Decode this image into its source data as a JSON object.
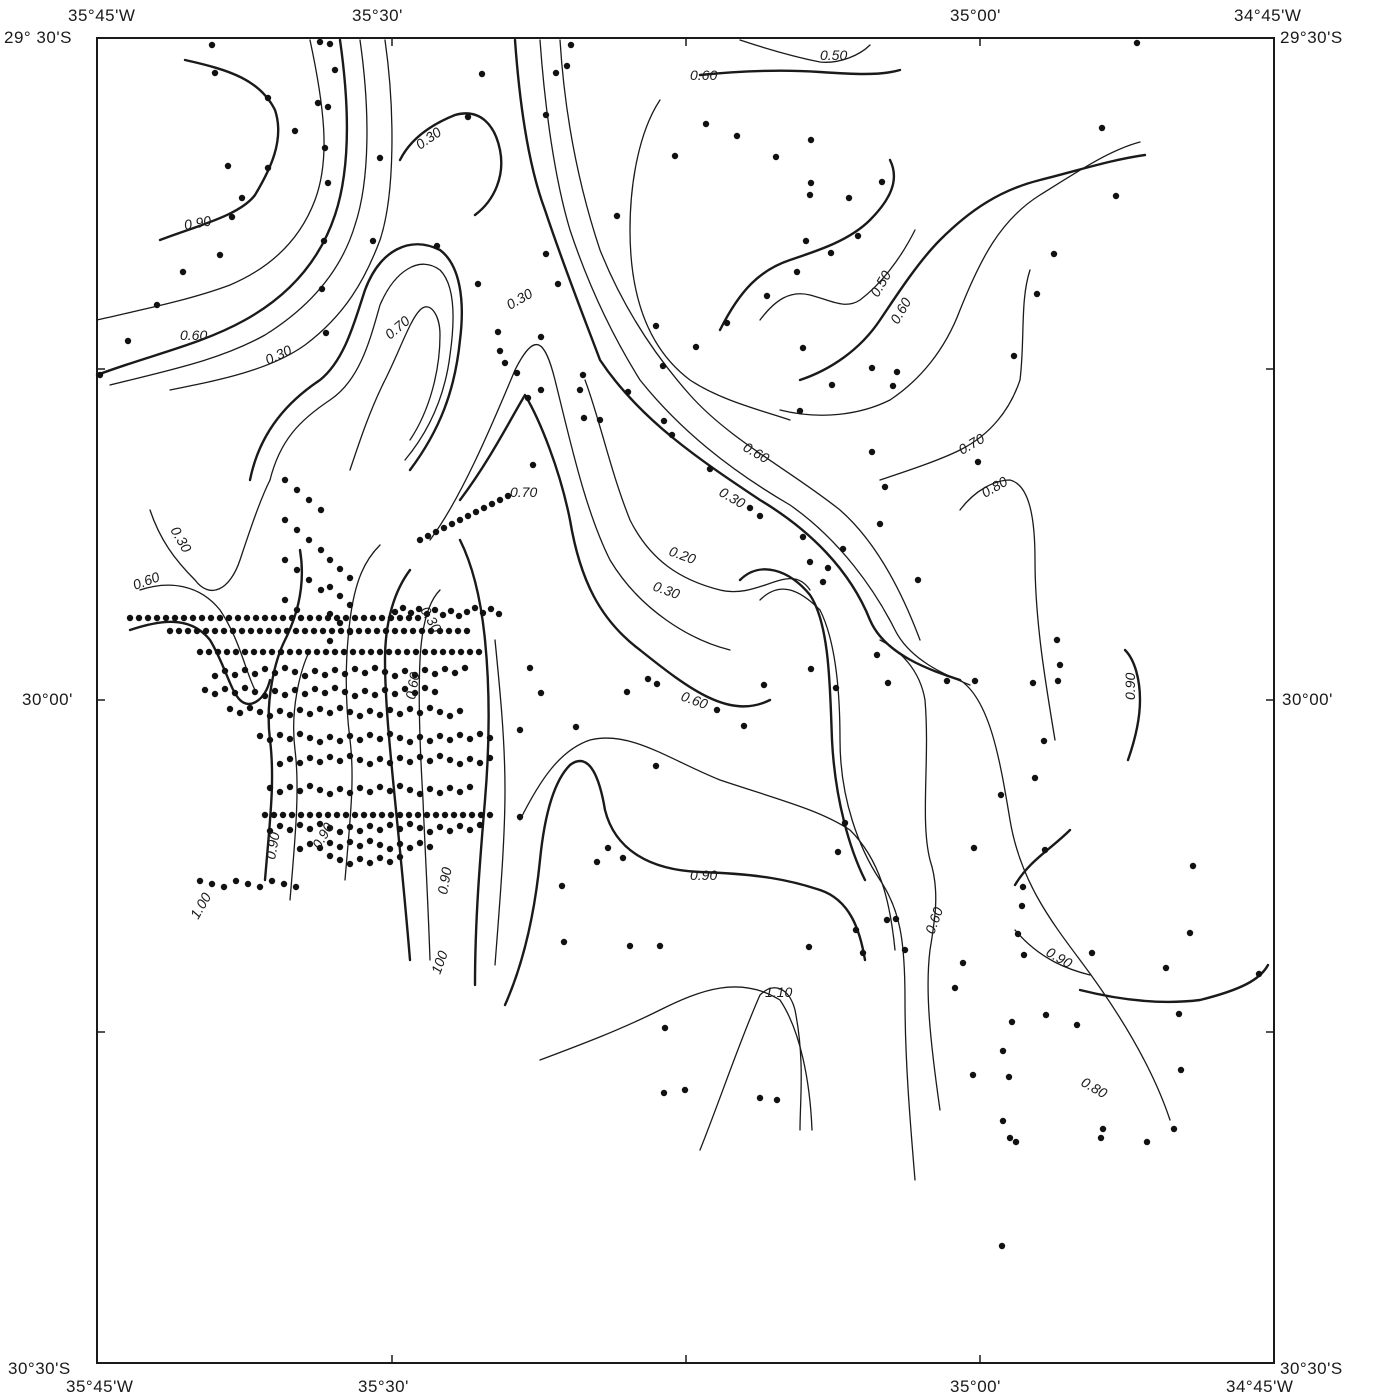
{
  "corner_labels": {
    "top_left_lon": "35°45'W",
    "top_left_lat": "29° 30'S",
    "top_right_lon": "34°45'W",
    "top_right_lat": "29°30'S",
    "bottom_left_lat": "30°30'S",
    "bottom_left_lon": "35°45'W",
    "bottom_right_lat": "30°30'S",
    "bottom_right_lon": "34°45'W"
  },
  "axis_labels": {
    "top_lon_1": "35°30'",
    "top_lon_2": "35°00'",
    "bottom_lon_1": "35°30'",
    "bottom_lon_2": "35°00'",
    "left_lat_mid": "30°00'",
    "right_lat_mid": "30°00'"
  },
  "contour_labels": [
    "0.50",
    "0.60",
    "0.30",
    "0.90",
    "0.60",
    "0.30",
    "0.70",
    "0.30",
    "0.50",
    "0.60",
    "0.70",
    "0.80",
    "0.60",
    "0.30",
    "0.70",
    "0.20",
    "0.30",
    "0.30",
    "0.60",
    "0.60",
    "0.90",
    "0.90",
    "0.90",
    "0.90",
    "1.00",
    "100",
    "0.60",
    "0.90",
    "1.10",
    "0.80",
    "0.90",
    "0.60",
    "0.30"
  ]
}
